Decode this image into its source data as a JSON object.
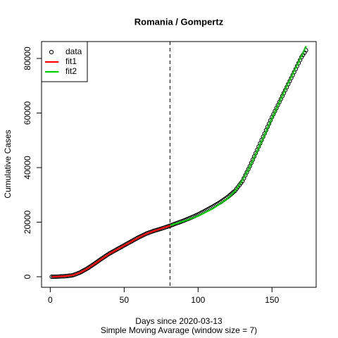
{
  "chart_data": {
    "type": "line",
    "title": "Romania / Gompertz",
    "x_label": "Days since 2020-03-13",
    "subtitle": "Simple Moving Avarage (window size = 7)",
    "y_label": "Cumulative Cases",
    "xlim": [
      -5.9,
      179.9
    ],
    "xticks": [
      0,
      50,
      100,
      150
    ],
    "ylim": [
      -3870,
      86200
    ],
    "yticks": [
      0,
      20000,
      40000,
      60000,
      80000
    ],
    "vline": 81,
    "legend": "top-left",
    "series": [
      {
        "name": "data",
        "color": "#000000",
        "style": "points",
        "x": [
          1,
          2,
          3,
          4,
          5,
          6,
          7,
          8,
          9,
          10,
          11,
          12,
          13,
          14,
          15,
          16,
          17,
          18,
          19,
          20,
          21,
          22,
          23,
          24,
          25,
          26,
          27,
          28,
          29,
          30,
          31,
          32,
          33,
          34,
          35,
          36,
          37,
          38,
          39,
          40,
          41,
          42,
          43,
          44,
          45,
          46,
          47,
          48,
          49,
          50,
          51,
          52,
          53,
          54,
          55,
          56,
          57,
          58,
          59,
          60,
          61,
          62,
          63,
          64,
          65,
          66,
          67,
          68,
          69,
          70,
          71,
          72,
          73,
          74,
          75,
          76,
          77,
          78,
          79,
          80,
          81,
          82,
          83,
          84,
          85,
          86,
          87,
          88,
          89,
          90,
          91,
          92,
          93,
          94,
          95,
          96,
          97,
          98,
          99,
          100,
          101,
          102,
          103,
          104,
          105,
          106,
          107,
          108,
          109,
          110,
          111,
          112,
          113,
          114,
          115,
          116,
          117,
          118,
          119,
          120,
          121,
          122,
          123,
          124,
          125,
          126,
          127,
          128,
          129,
          130,
          131,
          132,
          133,
          134,
          135,
          136,
          137,
          138,
          139,
          140,
          141,
          142,
          143,
          144,
          145,
          146,
          147,
          148,
          149,
          150,
          151,
          152,
          153,
          154,
          155,
          156,
          157,
          158,
          159,
          160,
          161,
          162,
          163,
          164,
          165,
          166,
          167,
          168,
          169,
          170,
          171,
          172,
          173
        ],
        "values": [
          0,
          10,
          20,
          35,
          50,
          80,
          110,
          140,
          170,
          200,
          260,
          320,
          380,
          440,
          500,
          700,
          900,
          1100,
          1300,
          1500,
          1800,
          2100,
          2400,
          2700,
          3000,
          3360,
          3720,
          4080,
          4440,
          4800,
          5180,
          5560,
          5940,
          6320,
          6700,
          7060,
          7420,
          7780,
          8140,
          8500,
          8800,
          9100,
          9400,
          9700,
          10000,
          10300,
          10600,
          10900,
          11200,
          11500,
          11800,
          12100,
          12400,
          12700,
          13000,
          13300,
          13600,
          13900,
          14200,
          14500,
          14760,
          15020,
          15280,
          15540,
          15800,
          16000,
          16200,
          16400,
          16600,
          16800,
          16960,
          17120,
          17280,
          17440,
          17600,
          17780,
          17960,
          18140,
          18320,
          18500,
          18700,
          18900,
          19100,
          19300,
          19500,
          19700,
          19900,
          20100,
          20300,
          20500,
          20720,
          20940,
          21160,
          21380,
          21600,
          21840,
          22080,
          22320,
          22560,
          22800,
          23080,
          23360,
          23640,
          23920,
          24200,
          24500,
          24800,
          25100,
          25400,
          25700,
          26020,
          26340,
          26660,
          26980,
          27300,
          27680,
          28060,
          28440,
          28820,
          29200,
          29660,
          30120,
          30580,
          31040,
          31500,
          32200,
          32900,
          33600,
          34300,
          35000,
          36100,
          37200,
          38300,
          39400,
          40500,
          41700,
          42900,
          44100,
          45300,
          46500,
          47700,
          48900,
          50100,
          51300,
          52500,
          53700,
          54900,
          56100,
          57300,
          58500,
          59600,
          60700,
          61800,
          62900,
          64000,
          65100,
          66200,
          67300,
          68400,
          69500,
          70600,
          71700,
          72800,
          73900,
          75000,
          76100,
          77200,
          78300,
          79400,
          80500,
          81300,
          82100,
          83000
        ]
      },
      {
        "name": "fit1",
        "color": "#ff0000",
        "style": "line",
        "x": [
          1,
          5,
          10,
          15,
          20,
          25,
          30,
          35,
          40,
          45,
          50,
          55,
          60,
          65,
          70,
          75,
          81
        ],
        "values": [
          0,
          60,
          220,
          560,
          1500,
          3000,
          4800,
          6700,
          8500,
          10000,
          11500,
          13000,
          14500,
          15800,
          16800,
          17700,
          18700
        ]
      },
      {
        "name": "fit2",
        "color": "#00cd00",
        "style": "line",
        "x": [
          81,
          90,
          100,
          110,
          120,
          125,
          130,
          135,
          140,
          150,
          160,
          170,
          173
        ],
        "values": [
          18900,
          20300,
          22300,
          25000,
          28700,
          31500,
          35500,
          40500,
          46300,
          58300,
          70000,
          81000,
          84500
        ]
      }
    ]
  }
}
